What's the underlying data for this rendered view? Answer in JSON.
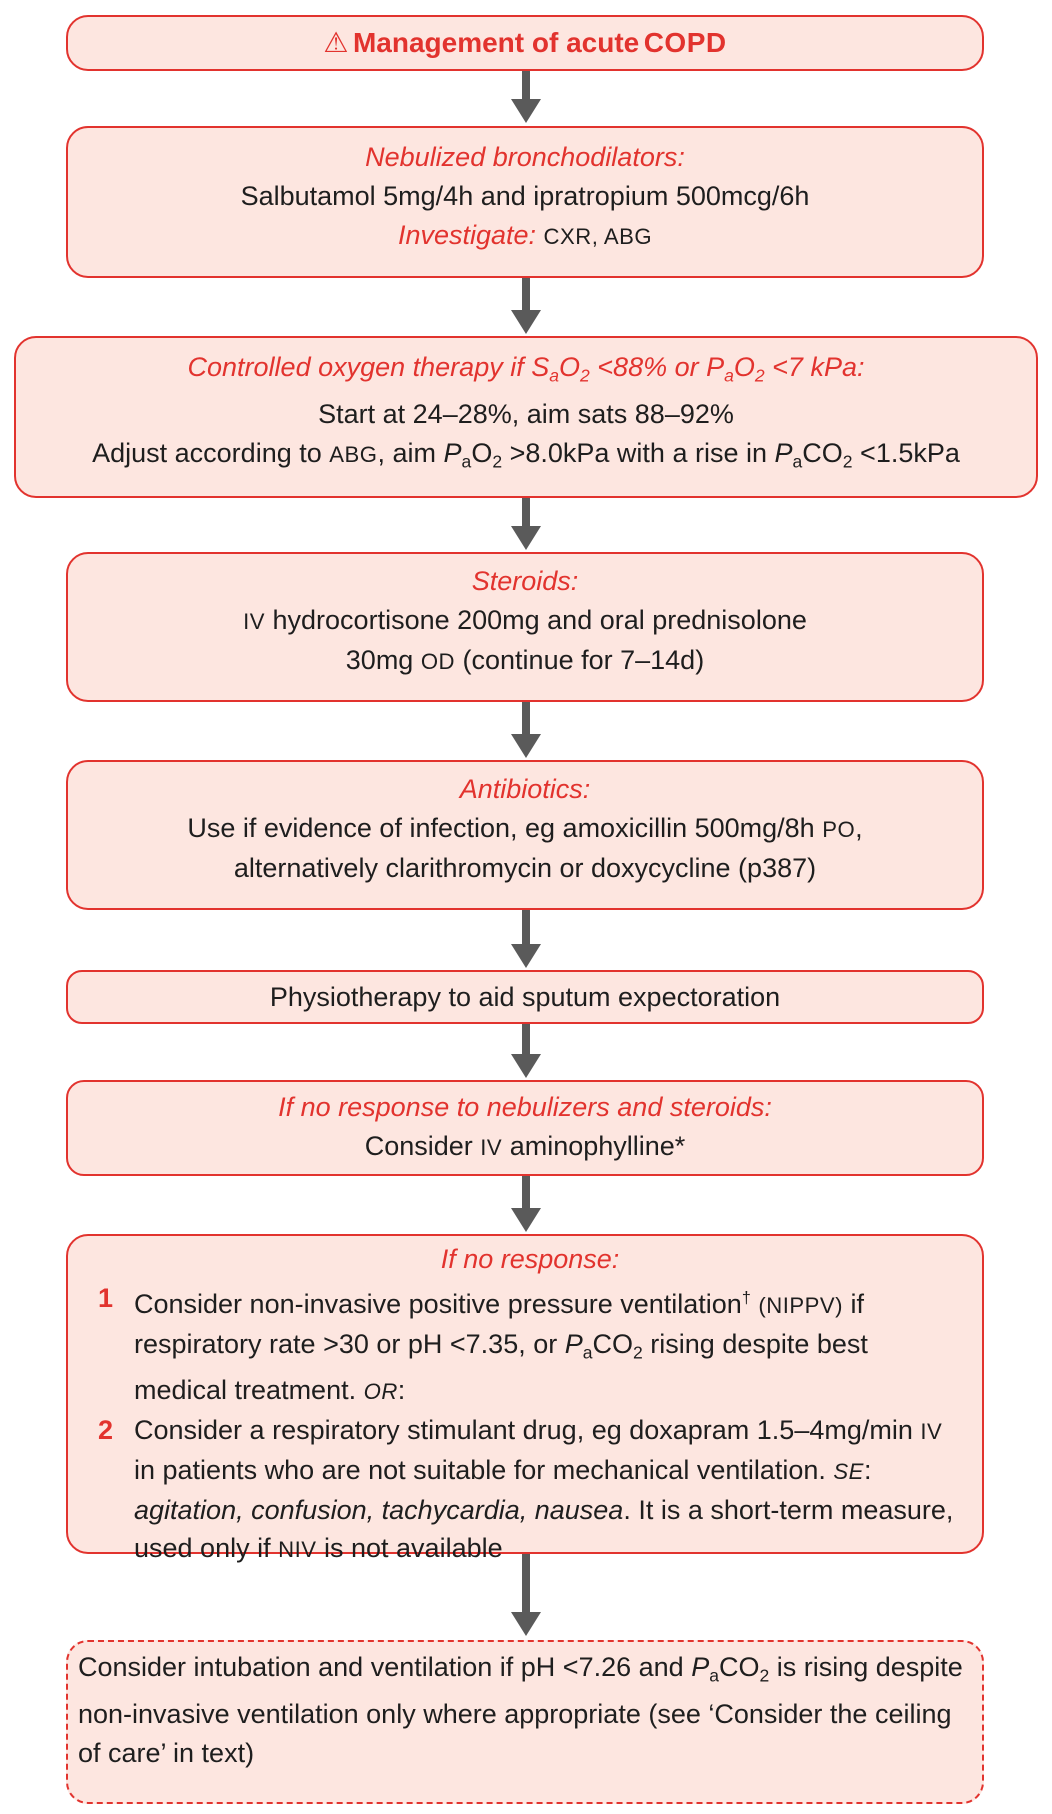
{
  "title": "Management of acute",
  "title_abbr": "COPD",
  "box1": {
    "heading": "Nebulized bronchodilators:",
    "line1": "Salbutamol 5mg/4h and ipratropium 500mcg/6h",
    "investigate_label": "Investigate:",
    "investigate_items": "CXR, ABG"
  },
  "box2": {
    "heading_prefix": "Controlled oxygen therapy if S",
    "heading_mid1": "O",
    "heading_mid2": " <88% or P",
    "heading_mid3": "O",
    "heading_suffix": " <7 kPa:",
    "line1": "Start at 24–28%, aim sats 88–92%",
    "line2_a": "Adjust according to",
    "line2_abbr": "ABG",
    "line2_b": ", aim",
    "line2_c": " >8.0kPa with a rise in",
    "line2_d": " <1.5kPa"
  },
  "box3": {
    "heading": "Steroids:",
    "line1_abbr": "IV",
    "line1": " hydrocortisone 200mg and oral prednisolone",
    "line2_a": "30mg",
    "line2_abbr": "OD",
    "line2_b": " (continue for 7–14d)"
  },
  "box4": {
    "heading": "Antibiotics:",
    "line1_a": "Use if evidence of infection, eg amoxicillin 500mg/8h",
    "line1_abbr": "PO",
    "line1_b": ",",
    "line2": "alternatively clarithromycin or doxycycline (p387)"
  },
  "box5": {
    "line1": "Physiotherapy to aid sputum expectoration"
  },
  "box6": {
    "heading": "If no response to nebulizers and steroids:",
    "line1_a": "Consider",
    "line1_abbr": "IV",
    "line1_b": " aminophylline*"
  },
  "box7": {
    "heading": "If no response:",
    "item1_num": "1",
    "item1_a": "Consider non-invasive positive pressure ventilation",
    "item1_dagger": "†",
    "item1_abbr": "(NIPPV)",
    "item1_b": " if respiratory rate >30 or pH <7.35, or",
    "item1_c": " rising despite best medical treatment.",
    "item1_or": "OR",
    "item1_d": ":",
    "item2_num": "2",
    "item2_a": "Consider a respiratory stimulant drug, eg doxapram 1.5–4mg/min",
    "item2_abbr": "IV",
    "item2_b": " in patients who are not suitable for mechanical ventilation.",
    "item2_se": "SE",
    "item2_c": ": ",
    "item2_effects": "agitation, confusion, tachycardia, nausea",
    "item2_d": ". It is a short-term measure, used only if",
    "item2_niv": "NIV",
    "item2_e": " is not available"
  },
  "box8": {
    "line1_a": "Consider intubation and ventilation if pH <7.26 and",
    "line1_b": " is rising despite non-invasive ventilation only where appropriate (see ‘Consider the ceiling of care’ in text)"
  },
  "symbols": {
    "pao2": "O",
    "paco2": "CO",
    "sub2": "2",
    "p": "P",
    "a": "a"
  },
  "colors": {
    "accent": "#e2332e",
    "fill": "#fde6e0",
    "arrow": "#5a5a5a"
  }
}
